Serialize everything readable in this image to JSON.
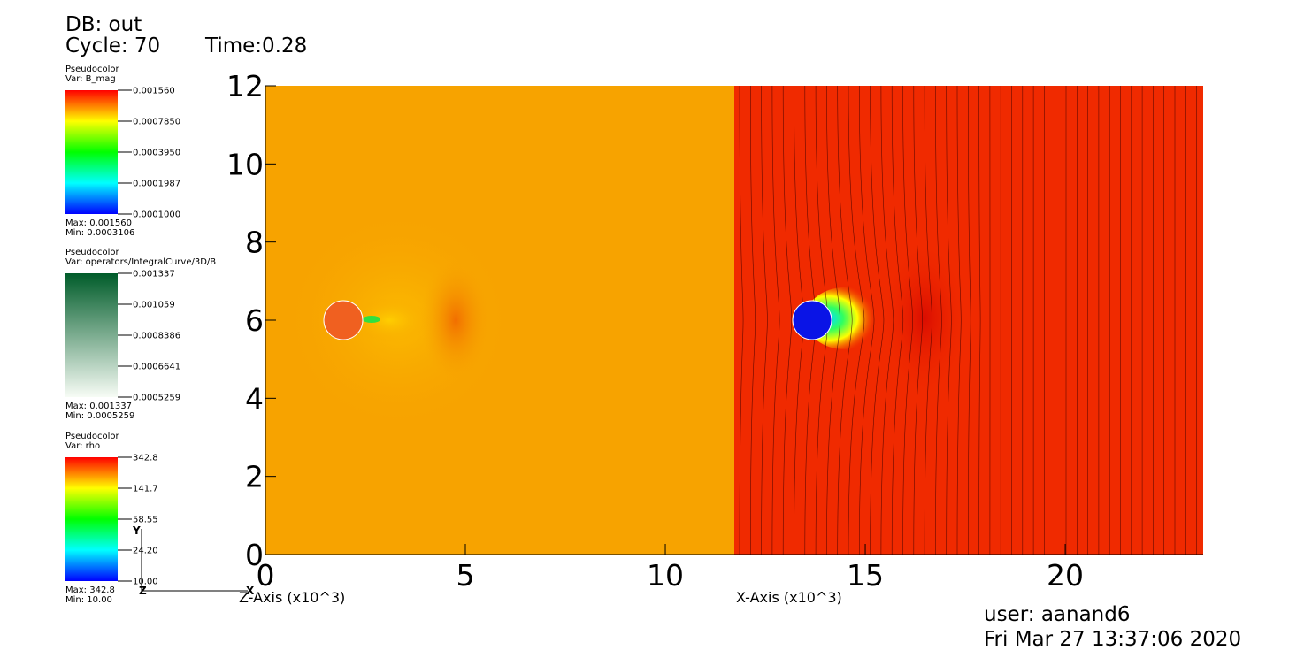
{
  "header": {
    "db": "DB: out",
    "cycle": "Cycle: 70",
    "time": "Time:0.28"
  },
  "legends": [
    {
      "title": "Pseudocolor",
      "var": "Var: B_mag",
      "labels": [
        "0.001560",
        "0.0007850",
        "0.0003950",
        "0.0001987",
        "0.0001000"
      ],
      "max": "Max: 0.001560",
      "min": "Min: 0.0003106"
    },
    {
      "title": "Pseudocolor",
      "var": "Var: operators/IntegralCurve/3D/B",
      "labels": [
        "0.001337",
        "0.001059",
        "0.0008386",
        "0.0006641",
        "0.0005259"
      ],
      "max": "Max: 0.001337",
      "min": "Min: 0.0005259"
    },
    {
      "title": "Pseudocolor",
      "var": "Var: rho",
      "labels": [
        "342.8",
        "141.7",
        "58.55",
        "24.20",
        "10.00"
      ],
      "max": "Max: 342.8",
      "min": "Min: 10.00"
    }
  ],
  "triad": {
    "y": "Y",
    "z": "Z",
    "x": "X"
  },
  "chart_data": {
    "type": "pseudocolor",
    "z_label": "Z-Axis (x10^3)",
    "x_label": "X-Axis (x10^3)",
    "xlim": [
      0,
      23.45
    ],
    "ylim": [
      0,
      12
    ],
    "xticks": [
      0,
      5,
      10,
      15,
      20
    ],
    "yticks": [
      0,
      2,
      4,
      6,
      8,
      10,
      12
    ]
  },
  "footer": {
    "user": "user: aanand6",
    "date": "Fri Mar 27 13:37:06 2020"
  }
}
